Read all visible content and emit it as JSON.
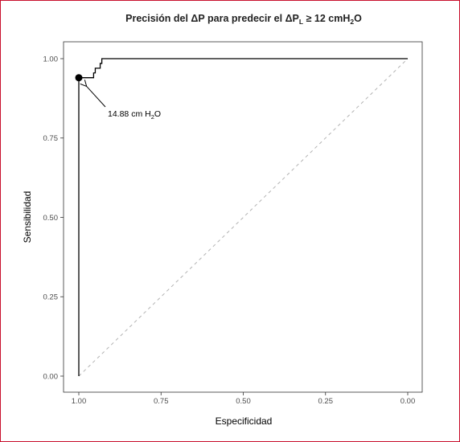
{
  "chart_data": {
    "type": "line",
    "title_parts": {
      "a": "Precisión del ΔP para predecir el ΔP",
      "b": "L",
      "c": " ≥ 12 cmH",
      "d": "2",
      "e": "O"
    },
    "xlabel": "Especificidad",
    "ylabel": "Sensibilidad",
    "xlim": [
      1.0,
      0.0
    ],
    "ylim": [
      0.0,
      1.0
    ],
    "x_reversed": true,
    "x_ticks": [
      1.0,
      0.75,
      0.5,
      0.25,
      0.0
    ],
    "x_tick_labels": [
      "1.00",
      "0.75",
      "0.50",
      "0.25",
      "0.00"
    ],
    "y_ticks": [
      0.0,
      0.25,
      0.5,
      0.75,
      1.0
    ],
    "y_tick_labels": [
      "0.00",
      "0.25",
      "0.50",
      "0.75",
      "1.00"
    ],
    "grid": false,
    "reference_line": {
      "from": [
        1.0,
        0.0
      ],
      "to": [
        0.0,
        1.0
      ],
      "style": "dashed",
      "color": "#b3b3b3"
    },
    "series": [
      {
        "color": "#000000",
        "points": [
          [
            1.0,
            0.0
          ],
          [
            1.0,
            0.94
          ],
          [
            0.955,
            0.94
          ],
          [
            0.955,
            0.955
          ],
          [
            0.95,
            0.955
          ],
          [
            0.95,
            0.97
          ],
          [
            0.935,
            0.97
          ],
          [
            0.935,
            0.985
          ],
          [
            0.93,
            0.985
          ],
          [
            0.93,
            1.0
          ],
          [
            0.0,
            1.0
          ]
        ]
      }
    ],
    "highlight_point": {
      "x": 1.0,
      "y": 0.94,
      "label_parts": {
        "a": "14.88 cm H",
        "b": "2",
        "c": "O"
      }
    }
  }
}
